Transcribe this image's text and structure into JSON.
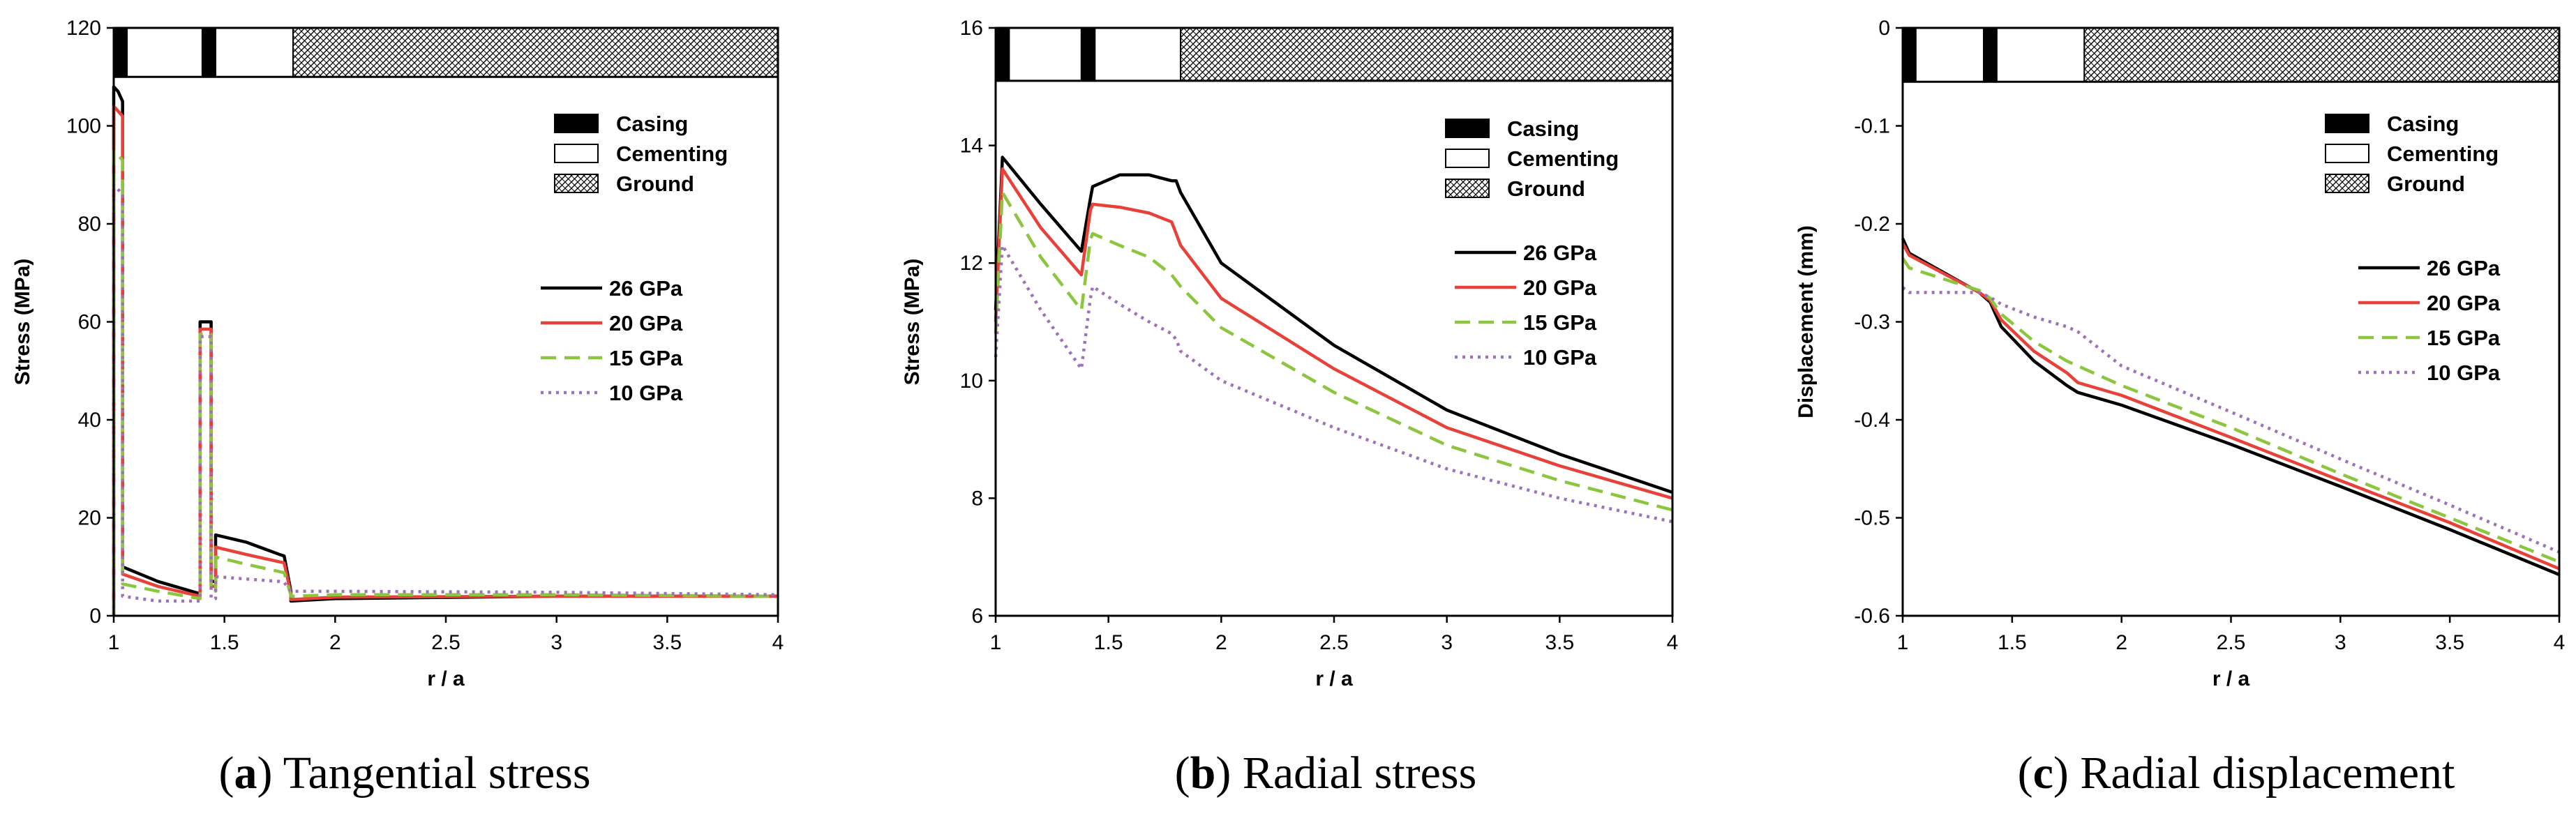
{
  "figure": {
    "legend_materials": [
      {
        "label": "Casing",
        "fill": "black"
      },
      {
        "label": "Cementing",
        "fill": "white"
      },
      {
        "label": "Ground",
        "fill": "hatch"
      }
    ],
    "series_styles": [
      {
        "name": "26 GPa",
        "color": "#000000",
        "dash": "solid"
      },
      {
        "name": "20 GPa",
        "color": "#e8413a",
        "dash": "solid"
      },
      {
        "name": "15 GPa",
        "color": "#8cc63e",
        "dash": "dashed"
      },
      {
        "name": "10 GPa",
        "color": "#9e72b8",
        "dash": "dotted"
      }
    ]
  },
  "chart_data": [
    {
      "type": "line",
      "caption_letter": "a",
      "caption_text": "Tangential stress",
      "xlabel": "r / a",
      "ylabel": "Stress (MPa)",
      "xlim": [
        1,
        4
      ],
      "ylim": [
        0,
        120
      ],
      "xticks": [
        1,
        1.5,
        2,
        2.5,
        3,
        3.5,
        4
      ],
      "yticks": [
        0,
        20,
        40,
        60,
        80,
        100,
        120
      ],
      "xtick_labels": [
        "1",
        "1.5",
        "2",
        "2.5",
        "3",
        "3.5",
        "4"
      ],
      "ytick_labels": [
        "0",
        "20",
        "40",
        "60",
        "80",
        "100",
        "120"
      ],
      "band_top_value": 110,
      "material_bands": [
        {
          "material": "casing",
          "x0": 1.0,
          "x1": 1.06
        },
        {
          "material": "cementing",
          "x0": 1.06,
          "x1": 1.4
        },
        {
          "material": "casing",
          "x0": 1.4,
          "x1": 1.46
        },
        {
          "material": "cementing",
          "x0": 1.46,
          "x1": 1.81
        },
        {
          "material": "ground",
          "x0": 1.81,
          "x1": 4.0
        }
      ],
      "series": [
        {
          "name": "26 GPa",
          "x": [
            1.0,
            1.0,
            1.02,
            1.04,
            1.04,
            1.2,
            1.39,
            1.39,
            1.4,
            1.44,
            1.44,
            1.46,
            1.46,
            1.6,
            1.75,
            1.77,
            1.8,
            1.8,
            2.0,
            3.0,
            4.0
          ],
          "y": [
            0,
            108,
            107,
            105,
            10,
            7,
            4.5,
            60,
            60,
            60,
            7,
            7,
            16.5,
            15,
            12.5,
            12.2,
            5,
            3,
            3.5,
            4,
            4
          ]
        },
        {
          "name": "20 GPa",
          "x": [
            1.0,
            1.0,
            1.02,
            1.04,
            1.04,
            1.2,
            1.39,
            1.39,
            1.4,
            1.44,
            1.44,
            1.46,
            1.46,
            1.6,
            1.75,
            1.77,
            1.8,
            1.8,
            2.0,
            3.0,
            4.0
          ],
          "y": [
            0,
            104,
            103,
            102,
            8.5,
            6,
            4,
            58.5,
            58.5,
            58.5,
            6,
            6,
            14,
            12.5,
            11,
            10.8,
            4.5,
            3.3,
            3.8,
            4,
            4
          ]
        },
        {
          "name": "15 GPa",
          "x": [
            1.0,
            1.0,
            1.02,
            1.04,
            1.04,
            1.2,
            1.39,
            1.39,
            1.4,
            1.44,
            1.44,
            1.46,
            1.46,
            1.6,
            1.75,
            1.77,
            1.8,
            1.8,
            2.0,
            3.0,
            4.0
          ],
          "y": [
            0,
            95,
            94,
            93,
            6.5,
            5,
            3.5,
            57.5,
            57.5,
            57.5,
            5,
            5,
            12,
            10.5,
            9,
            8.8,
            4.2,
            4,
            4.3,
            4.3,
            4
          ]
        },
        {
          "name": "10 GPa",
          "x": [
            1.0,
            1.0,
            1.02,
            1.04,
            1.04,
            1.2,
            1.39,
            1.39,
            1.4,
            1.44,
            1.44,
            1.46,
            1.46,
            1.6,
            1.75,
            1.77,
            1.8,
            1.8,
            2.0,
            3.0,
            4.0
          ],
          "y": [
            0,
            88,
            87,
            86,
            4,
            3,
            3,
            57,
            57,
            57,
            3.5,
            3.5,
            8,
            7.5,
            7,
            6.8,
            5,
            5,
            5,
            4.8,
            4.3
          ]
        }
      ]
    },
    {
      "type": "line",
      "caption_letter": "b",
      "caption_text": "Radial stress",
      "xlabel": "r / a",
      "ylabel": "Stress (MPa)",
      "xlim": [
        1,
        4
      ],
      "ylim": [
        6,
        16
      ],
      "xticks": [
        1,
        1.5,
        2,
        2.5,
        3,
        3.5,
        4
      ],
      "yticks": [
        6,
        8,
        10,
        12,
        14,
        16
      ],
      "xtick_labels": [
        "1",
        "1.5",
        "2",
        "2.5",
        "3",
        "3.5",
        "4"
      ],
      "ytick_labels": [
        "6",
        "8",
        "10",
        "12",
        "14",
        "16"
      ],
      "band_top_value": 15.1,
      "material_bands": [
        {
          "material": "casing",
          "x0": 1.0,
          "x1": 1.06
        },
        {
          "material": "cementing",
          "x0": 1.06,
          "x1": 1.38
        },
        {
          "material": "casing",
          "x0": 1.38,
          "x1": 1.44
        },
        {
          "material": "cementing",
          "x0": 1.44,
          "x1": 1.82
        },
        {
          "material": "ground",
          "x0": 1.82,
          "x1": 4.0
        }
      ],
      "series": [
        {
          "name": "26 GPa",
          "x": [
            1.0,
            1.03,
            1.2,
            1.38,
            1.42,
            1.43,
            1.55,
            1.68,
            1.78,
            1.8,
            1.82,
            2.0,
            2.5,
            3.0,
            3.5,
            4.0
          ],
          "y": [
            11.2,
            13.8,
            13.0,
            12.2,
            13.1,
            13.3,
            13.5,
            13.5,
            13.4,
            13.4,
            13.2,
            12.0,
            10.6,
            9.5,
            8.75,
            8.1
          ]
        },
        {
          "name": "20 GPa",
          "x": [
            1.0,
            1.03,
            1.2,
            1.38,
            1.42,
            1.43,
            1.55,
            1.68,
            1.78,
            1.8,
            1.82,
            2.0,
            2.5,
            3.0,
            3.5,
            4.0
          ],
          "y": [
            11.0,
            13.6,
            12.6,
            11.8,
            12.9,
            13.0,
            12.95,
            12.85,
            12.7,
            12.5,
            12.3,
            11.4,
            10.2,
            9.2,
            8.55,
            8.0
          ]
        },
        {
          "name": "15 GPa",
          "x": [
            1.0,
            1.03,
            1.2,
            1.38,
            1.42,
            1.43,
            1.55,
            1.68,
            1.78,
            1.8,
            1.82,
            2.0,
            2.5,
            3.0,
            3.5,
            4.0
          ],
          "y": [
            10.8,
            13.2,
            12.1,
            11.2,
            12.4,
            12.5,
            12.3,
            12.1,
            11.8,
            11.7,
            11.6,
            10.9,
            9.8,
            8.9,
            8.3,
            7.8
          ]
        },
        {
          "name": "10 GPa",
          "x": [
            1.0,
            1.03,
            1.2,
            1.38,
            1.42,
            1.43,
            1.55,
            1.68,
            1.78,
            1.8,
            1.82,
            2.0,
            2.5,
            3.0,
            3.5,
            4.0
          ],
          "y": [
            10.4,
            12.3,
            11.2,
            10.2,
            11.4,
            11.6,
            11.3,
            11.0,
            10.8,
            10.7,
            10.5,
            10.0,
            9.2,
            8.5,
            8.0,
            7.6
          ]
        }
      ]
    },
    {
      "type": "line",
      "caption_letter": "c",
      "caption_text": "Radial displacement",
      "xlabel": "r / a",
      "ylabel": "Displacement (mm)",
      "xlim": [
        1,
        4
      ],
      "ylim": [
        -0.6,
        0
      ],
      "xticks": [
        1,
        1.5,
        2,
        2.5,
        3,
        3.5,
        4
      ],
      "yticks": [
        -0.6,
        -0.5,
        -0.4,
        -0.3,
        -0.2,
        -0.1,
        0
      ],
      "xtick_labels": [
        "1",
        "1.5",
        "2",
        "2.5",
        "3",
        "3.5",
        "4"
      ],
      "ytick_labels": [
        "-0.6",
        "-0.5",
        "-0.4",
        "-0.3",
        "-0.2",
        "-0.1",
        "0"
      ],
      "band_top_value": -0.055,
      "material_bands": [
        {
          "material": "casing",
          "x0": 1.0,
          "x1": 1.06
        },
        {
          "material": "cementing",
          "x0": 1.06,
          "x1": 1.37
        },
        {
          "material": "casing",
          "x0": 1.37,
          "x1": 1.43
        },
        {
          "material": "cementing",
          "x0": 1.43,
          "x1": 1.83
        },
        {
          "material": "ground",
          "x0": 1.83,
          "x1": 4.0
        }
      ],
      "series": [
        {
          "name": "26 GPa",
          "x": [
            1.0,
            1.03,
            1.35,
            1.4,
            1.45,
            1.6,
            1.75,
            1.8,
            2.0,
            2.5,
            3.0,
            3.5,
            4.0
          ],
          "y": [
            -0.215,
            -0.23,
            -0.27,
            -0.28,
            -0.305,
            -0.34,
            -0.365,
            -0.372,
            -0.385,
            -0.425,
            -0.468,
            -0.512,
            -0.558
          ]
        },
        {
          "name": "20 GPa",
          "x": [
            1.0,
            1.03,
            1.35,
            1.4,
            1.45,
            1.6,
            1.75,
            1.8,
            2.0,
            2.5,
            3.0,
            3.5,
            4.0
          ],
          "y": [
            -0.22,
            -0.232,
            -0.27,
            -0.278,
            -0.298,
            -0.33,
            -0.352,
            -0.362,
            -0.375,
            -0.418,
            -0.462,
            -0.505,
            -0.552
          ]
        },
        {
          "name": "15 GPa",
          "x": [
            1.0,
            1.03,
            1.35,
            1.4,
            1.45,
            1.6,
            1.75,
            1.8,
            2.0,
            2.5,
            3.0,
            3.5,
            4.0
          ],
          "y": [
            -0.235,
            -0.245,
            -0.268,
            -0.276,
            -0.292,
            -0.32,
            -0.34,
            -0.345,
            -0.365,
            -0.408,
            -0.455,
            -0.5,
            -0.545
          ]
        },
        {
          "name": "10 GPa",
          "x": [
            1.0,
            1.03,
            1.35,
            1.4,
            1.45,
            1.6,
            1.75,
            1.8,
            2.0,
            2.5,
            3.0,
            3.5,
            4.0
          ],
          "y": [
            -0.265,
            -0.27,
            -0.27,
            -0.275,
            -0.282,
            -0.295,
            -0.305,
            -0.31,
            -0.345,
            -0.392,
            -0.44,
            -0.487,
            -0.535
          ]
        }
      ]
    }
  ]
}
